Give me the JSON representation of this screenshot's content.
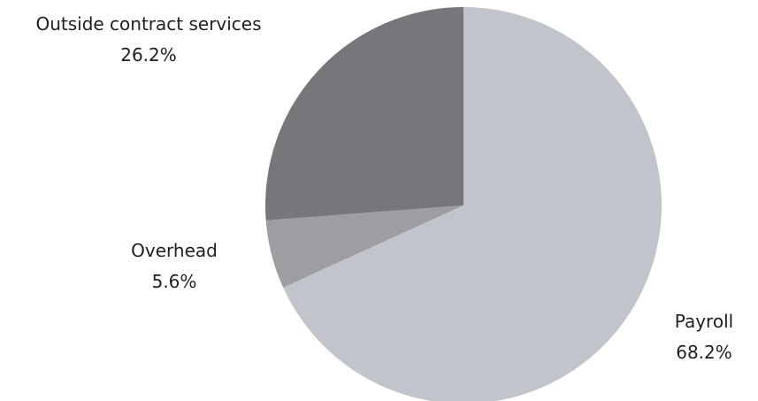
{
  "chart_data": {
    "type": "pie",
    "title": "",
    "start_angle_deg": 0,
    "direction": "clockwise",
    "legend": "none",
    "slices": [
      {
        "label": "Payroll",
        "value": 68.2,
        "value_label": "68.2%",
        "color": "#c1c4ca"
      },
      {
        "label": "Overhead",
        "value": 5.6,
        "value_label": "5.6%",
        "color": "#9d9ea2"
      },
      {
        "label": "Outside contract services",
        "value": 26.2,
        "value_label": "26.2%",
        "color": "#78757b"
      }
    ]
  }
}
